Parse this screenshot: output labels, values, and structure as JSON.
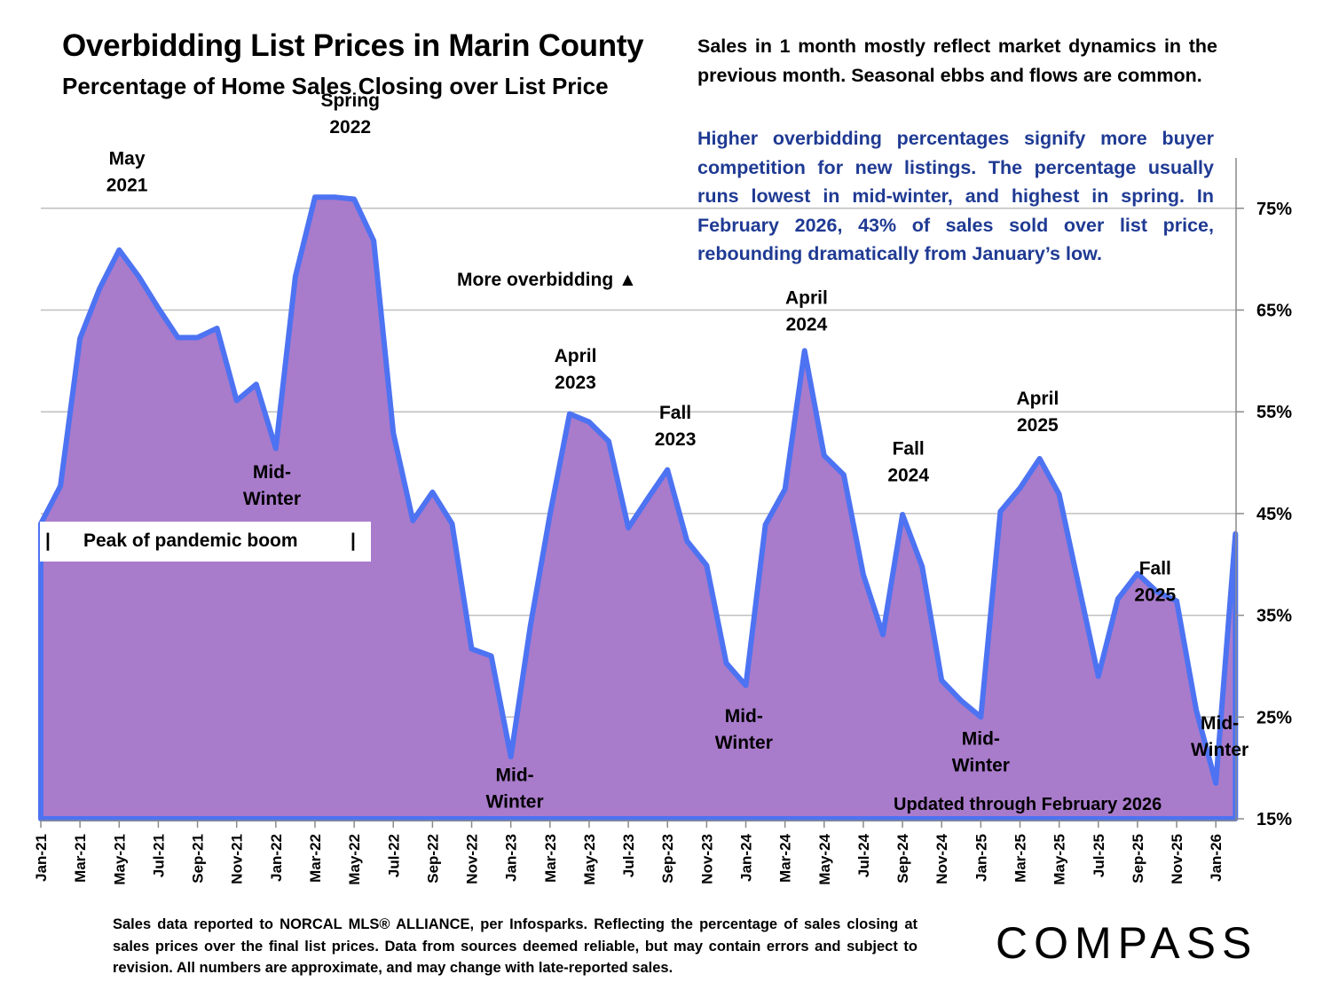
{
  "header": {
    "title": "Overbidding List Prices in Marin County",
    "subtitle": "Percentage of Home Sales Closing over List Price"
  },
  "notes": {
    "black": "Sales in 1 month mostly reflect market dynamics in the previous month. Seasonal ebbs and flows are common.",
    "blue": "Higher overbidding percentages signify more buyer competition for new listings. The percentage usually runs lowest in mid-winter, and highest in spring. In February 2026, 43% of sales sold over list price, rebounding dramatically from January’s low."
  },
  "footer": "Sales data reported to NORCAL MLS® ALLIANCE, per Infosparks. Reflecting the percentage of sales closing at sales prices over the final list prices. Data from sources deemed reliable, but may contain errors and subject to revision. All numbers are approximate, and may change with late-reported sales.",
  "logo": "COMPASS",
  "boom_label": {
    "left_bar": "|",
    "text": "Peak of pandemic boom",
    "right_bar": "|"
  },
  "colors": {
    "fill": "#A97BCB",
    "line": "#4D73F2",
    "blue_text": "#1F3A93",
    "grid": "#BFBFBF"
  },
  "chart_data": {
    "type": "area",
    "title": "Overbidding List Prices in Marin County",
    "subtitle": "Percentage of Home Sales Closing over List Price",
    "xlabel": "",
    "ylabel": "",
    "y_axis_side": "right",
    "ylim": [
      15,
      80
    ],
    "yticks": [
      15,
      25,
      35,
      45,
      55,
      65,
      75
    ],
    "ytick_labels": [
      "15%",
      "25%",
      "35%",
      "45%",
      "55%",
      "65%",
      "75%"
    ],
    "grid": true,
    "xtick_labels": [
      "Jan-21",
      "Mar-21",
      "May-21",
      "Jul-21",
      "Sep-21",
      "Nov-21",
      "Jan-22",
      "Mar-22",
      "May-22",
      "Jul-22",
      "Sep-22",
      "Nov-22",
      "Jan-23",
      "Mar-23",
      "May-23",
      "Jul-23",
      "Sep-23",
      "Nov-23",
      "Jan-24",
      "Mar-24",
      "May-24",
      "Jul-24",
      "Sep-24",
      "Nov-24",
      "Jan-25",
      "Mar-25",
      "May-25",
      "Jul-25",
      "Sep-25",
      "Nov-25",
      "Jan-26"
    ],
    "x": [
      "Jan-21",
      "Feb-21",
      "Mar-21",
      "Apr-21",
      "May-21",
      "Jun-21",
      "Jul-21",
      "Aug-21",
      "Sep-21",
      "Oct-21",
      "Nov-21",
      "Dec-21",
      "Jan-22",
      "Feb-22",
      "Mar-22",
      "Apr-22",
      "May-22",
      "Jun-22",
      "Jul-22",
      "Aug-22",
      "Sep-22",
      "Oct-22",
      "Nov-22",
      "Dec-22",
      "Jan-23",
      "Feb-23",
      "Mar-23",
      "Apr-23",
      "May-23",
      "Jun-23",
      "Jul-23",
      "Aug-23",
      "Sep-23",
      "Oct-23",
      "Nov-23",
      "Dec-23",
      "Jan-24",
      "Feb-24",
      "Mar-24",
      "Apr-24",
      "May-24",
      "Jun-24",
      "Jul-24",
      "Aug-24",
      "Sep-24",
      "Oct-24",
      "Nov-24",
      "Dec-24",
      "Jan-25",
      "Feb-25",
      "Mar-25",
      "Apr-25",
      "May-25",
      "Jun-25",
      "Jul-25",
      "Aug-25",
      "Sep-25",
      "Oct-25",
      "Nov-25",
      "Dec-25",
      "Jan-26",
      "Feb-26"
    ],
    "series": [
      {
        "name": "Percentage of sales over list price",
        "values": [
          44.0,
          47.7,
          62.2,
          67.1,
          70.9,
          68.3,
          65.2,
          62.3,
          62.3,
          63.2,
          56.1,
          57.7,
          51.4,
          68.3,
          76.1,
          76.1,
          75.9,
          71.8,
          52.9,
          44.3,
          47.1,
          44.0,
          31.7,
          31.0,
          21.1,
          34.0,
          44.9,
          54.8,
          54.0,
          52.1,
          43.6,
          46.5,
          49.3,
          42.3,
          39.9,
          30.3,
          28.1,
          43.9,
          47.4,
          61.0,
          50.7,
          48.8,
          39.0,
          33.1,
          44.9,
          39.8,
          28.6,
          26.6,
          25.0,
          45.2,
          47.5,
          50.4,
          46.9,
          37.9,
          29.0,
          36.6,
          39.1,
          37.3,
          36.4,
          25.7,
          18.5,
          43.0
        ]
      }
    ],
    "annotations": [
      {
        "lines": [
          "May",
          "2021"
        ],
        "month": 4.4,
        "value": 79.3
      },
      {
        "lines": [
          "Spring",
          "2022"
        ],
        "month": 15.8,
        "value": 85.0
      },
      {
        "lines": [
          "Mid-",
          "Winter"
        ],
        "month": 11.8,
        "value": 48.5
      },
      {
        "lines": [
          "April",
          "2023"
        ],
        "month": 27.3,
        "value": 59.9
      },
      {
        "lines": [
          "Fall",
          "2023"
        ],
        "month": 32.4,
        "value": 54.3
      },
      {
        "lines": [
          "Mid-",
          "Winter"
        ],
        "month": 24.2,
        "value": 18.7
      },
      {
        "lines": [
          "April",
          "2024"
        ],
        "month": 39.1,
        "value": 65.6
      },
      {
        "lines": [
          "Mid-",
          "Winter"
        ],
        "month": 35.9,
        "value": 24.5
      },
      {
        "lines": [
          "Fall",
          "2024"
        ],
        "month": 44.3,
        "value": 50.8
      },
      {
        "lines": [
          "Mid-",
          "Winter"
        ],
        "month": 48.0,
        "value": 22.3
      },
      {
        "lines": [
          "April",
          "2025"
        ],
        "month": 50.9,
        "value": 55.7
      },
      {
        "lines": [
          "Fall",
          "2025"
        ],
        "month": 56.9,
        "value": 39.0
      },
      {
        "lines": [
          "Mid-",
          "Winter"
        ],
        "month": 60.2,
        "value": 23.8
      }
    ],
    "text_labels": {
      "more_overbidding": "More overbidding ▲",
      "updated": "Updated through February 2026"
    }
  }
}
